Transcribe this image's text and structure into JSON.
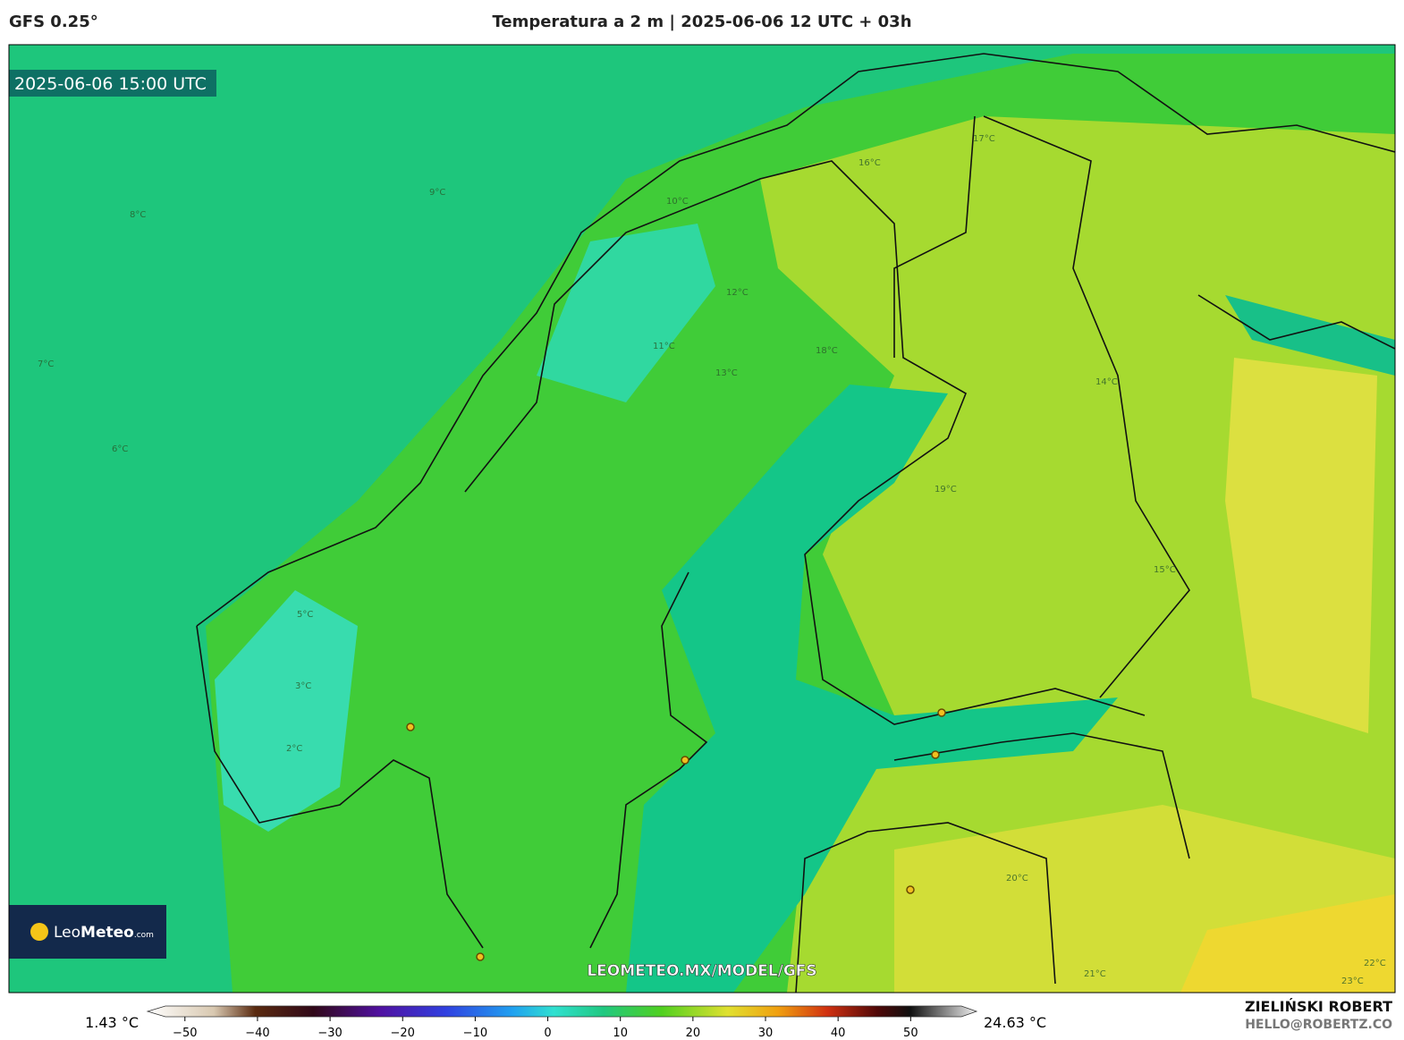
{
  "header": {
    "model": "GFS 0.25°",
    "title": "Temperatura a 2 m | 2025-06-06 12 UTC + 03h"
  },
  "map": {
    "valid_time": "2025-06-06 15:00 UTC",
    "watermark": "LEOMETEO.MX/MODEL/GFS",
    "logo": {
      "name": "Leo",
      "name_bold": "Meteo",
      "suffix": ".com"
    },
    "contour_labels": [
      "9°C",
      "8°C",
      "7°C",
      "6°C",
      "10°C",
      "12°C",
      "11°C",
      "13°C",
      "17°C",
      "16°C",
      "18°C",
      "15°C",
      "14°C",
      "19°C",
      "20°C",
      "2°C",
      "3°C",
      "5°C",
      "21°C",
      "22°C",
      "23°C"
    ]
  },
  "colorbar": {
    "min_label": "1.43 °C",
    "max_label": "24.63 °C",
    "lim": [
      -53.3,
      57.6
    ],
    "ticks": [
      {
        "value": -50,
        "label": "−50"
      },
      {
        "value": -40,
        "label": "−40"
      },
      {
        "value": -30,
        "label": "−30"
      },
      {
        "value": -20,
        "label": "−20"
      },
      {
        "value": -10,
        "label": "−10"
      },
      0,
      10,
      20,
      30,
      40,
      50
    ]
  },
  "footer": {
    "author": "ZIELIŃSKI ROBERT",
    "email": "HELLO@ROBERTZ.CO"
  }
}
